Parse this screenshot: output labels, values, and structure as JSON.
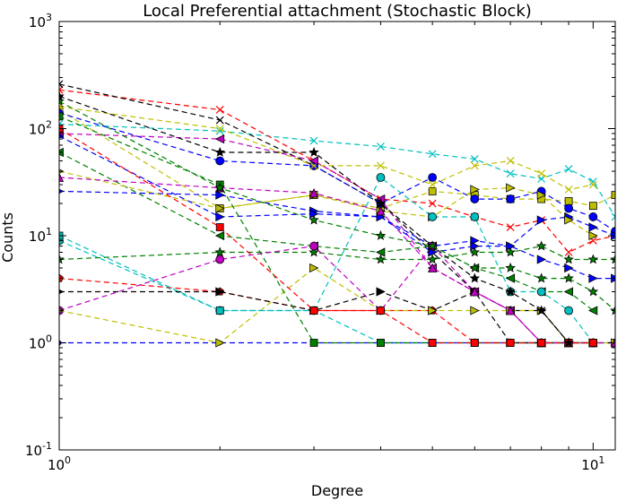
{
  "chart_data": {
    "type": "line",
    "title": "Local Preferential attachment (Stochastic Block)",
    "xlabel": "Degree",
    "ylabel": "Counts",
    "x_scale": "log",
    "y_scale": "log",
    "xlim": [
      1,
      11
    ],
    "ylim": [
      0.1,
      1000
    ],
    "x_ticks": [
      {
        "value": 1,
        "base": "10",
        "exp": "0"
      },
      {
        "value": 10,
        "base": "10",
        "exp": "1"
      }
    ],
    "y_ticks": [
      {
        "value": 0.1,
        "base": "10",
        "exp": "-1"
      },
      {
        "value": 1,
        "base": "10",
        "exp": "0"
      },
      {
        "value": 10,
        "base": "10",
        "exp": "1"
      },
      {
        "value": 100,
        "base": "10",
        "exp": "2"
      },
      {
        "value": 1000,
        "base": "10",
        "exp": "3"
      }
    ],
    "grid": false,
    "legend": "none",
    "series": [
      {
        "color": "#0000ff",
        "marker": "o",
        "x": [
          1,
          2,
          3,
          4,
          5,
          6,
          7,
          8,
          9,
          10
        ],
        "y": [
          1,
          1,
          1,
          1,
          1,
          1,
          1,
          1,
          1,
          1
        ]
      },
      {
        "color": "#bfbf00",
        "marker": "square",
        "x": [
          1,
          2,
          3,
          4,
          5,
          6,
          7,
          8,
          9,
          10,
          11
        ],
        "y": [
          150,
          18,
          24,
          18,
          26,
          24,
          22,
          22,
          21,
          19,
          24
        ]
      },
      {
        "color": "#00bfbf",
        "marker": "x",
        "x": [
          1,
          2,
          3,
          4,
          5,
          6,
          7,
          8,
          9,
          10,
          11
        ],
        "y": [
          110,
          95,
          77,
          68,
          58,
          52,
          38,
          34,
          42,
          32,
          15
        ]
      },
      {
        "color": "#ff0000",
        "marker": "x",
        "x": [
          1,
          2,
          3,
          4,
          5,
          6,
          7,
          8,
          9,
          10,
          11
        ],
        "y": [
          230,
          150,
          50,
          22,
          20,
          15,
          12,
          14,
          7,
          9,
          10
        ]
      },
      {
        "color": "#000000",
        "marker": "x",
        "x": [
          1,
          2,
          3,
          4,
          5,
          6,
          7,
          8,
          9,
          10,
          11
        ],
        "y": [
          260,
          120,
          45,
          20,
          7,
          3,
          2,
          2,
          1,
          1,
          1
        ]
      },
      {
        "color": "#0000ff",
        "marker": "circle",
        "x": [
          1,
          2,
          3,
          4,
          5,
          6,
          7,
          8,
          9,
          10,
          11
        ],
        "y": [
          140,
          50,
          45,
          20,
          35,
          22,
          22,
          26,
          18,
          15,
          11
        ]
      },
      {
        "color": "#bfbf00",
        "marker": "x",
        "x": [
          1,
          2,
          3,
          4,
          5,
          6,
          7,
          8,
          9,
          10
        ],
        "y": [
          160,
          100,
          45,
          45,
          30,
          45,
          50,
          38,
          27,
          30
        ]
      },
      {
        "color": "#bf00bf",
        "marker": "triangle-left",
        "x": [
          1,
          2,
          3,
          4,
          5,
          6,
          7,
          8
        ],
        "y": [
          90,
          80,
          50,
          22,
          5,
          3,
          2,
          1
        ]
      },
      {
        "color": "#008000",
        "marker": "triangle-left",
        "x": [
          1,
          2,
          3,
          4,
          5,
          6,
          7,
          8,
          9,
          10
        ],
        "y": [
          60,
          10,
          8,
          7,
          8,
          5,
          4,
          3,
          3,
          2
        ]
      },
      {
        "color": "#0000ff",
        "marker": "triangle-right",
        "x": [
          1,
          2,
          3,
          4,
          5,
          6,
          7,
          8,
          9,
          10,
          11
        ],
        "y": [
          26,
          24,
          17,
          15,
          8,
          9,
          8,
          14,
          15,
          12,
          10
        ]
      },
      {
        "color": "#bfbf00",
        "marker": "triangle-right",
        "x": [
          1,
          2,
          3,
          4,
          5,
          6,
          7,
          8,
          9,
          10
        ],
        "y": [
          40,
          18,
          24,
          17,
          15,
          27,
          28,
          24,
          14,
          10
        ]
      },
      {
        "color": "#00bfbf",
        "marker": "circle",
        "x": [
          1,
          2,
          3,
          4,
          5,
          6,
          7,
          8,
          9,
          10,
          11
        ],
        "y": [
          9,
          2,
          2,
          35,
          15,
          15,
          3,
          3,
          2,
          1,
          1
        ]
      },
      {
        "color": "#ff0000",
        "marker": "pentagon",
        "x": [
          1,
          2,
          3,
          4,
          5,
          6,
          7,
          8
        ],
        "y": [
          4,
          3,
          2,
          2,
          2,
          1,
          1,
          1
        ]
      },
      {
        "color": "#008000",
        "marker": "star",
        "x": [
          1,
          2,
          3,
          4,
          5,
          6,
          7,
          8,
          9,
          10,
          11
        ],
        "y": [
          6,
          7,
          7,
          6,
          6,
          7,
          7,
          8,
          6,
          6,
          6
        ]
      },
      {
        "color": "#bf00bf",
        "marker": "circle",
        "x": [
          1,
          2,
          3,
          4,
          5,
          6,
          7,
          8,
          9,
          10
        ],
        "y": [
          2,
          6,
          8,
          2,
          8,
          3,
          2,
          1,
          1,
          1
        ]
      },
      {
        "color": "#000000",
        "marker": "triangle-right",
        "x": [
          1,
          2,
          3,
          4,
          5,
          6,
          7,
          8,
          9,
          10
        ],
        "y": [
          3,
          3,
          2,
          3,
          2,
          3,
          1,
          1,
          1,
          1
        ]
      },
      {
        "color": "#bfbf00",
        "marker": "triangle-right",
        "x": [
          1,
          2,
          3,
          4,
          5,
          6,
          7,
          8,
          9,
          10,
          11
        ],
        "y": [
          2,
          1,
          5,
          2,
          2,
          2,
          2,
          2,
          1,
          1,
          1
        ]
      },
      {
        "color": "#00bfbf",
        "marker": "square",
        "x": [
          1,
          2,
          3,
          4,
          5,
          6,
          7,
          8,
          9,
          10
        ],
        "y": [
          10,
          2,
          2,
          1,
          1,
          1,
          1,
          1,
          1,
          1
        ]
      },
      {
        "color": "#0000ff",
        "marker": "triangle-right",
        "x": [
          1,
          2,
          3,
          4,
          5,
          6,
          7,
          8,
          9,
          10,
          11
        ],
        "y": [
          85,
          15,
          16,
          15,
          7,
          8,
          8,
          6,
          5,
          4,
          4
        ]
      },
      {
        "color": "#008000",
        "marker": "square",
        "x": [
          1,
          2,
          3,
          4,
          5,
          6,
          7,
          8,
          9,
          10
        ],
        "y": [
          130,
          30,
          1,
          1,
          1,
          1,
          1,
          1,
          1,
          1
        ]
      },
      {
        "color": "#bf00bf",
        "marker": "triangle-up",
        "x": [
          1,
          2,
          3,
          4,
          5,
          6,
          7,
          8,
          9,
          10,
          11
        ],
        "y": [
          35,
          28,
          25,
          17,
          5,
          3,
          2,
          1,
          1,
          1,
          1
        ]
      },
      {
        "color": "#ff0000",
        "marker": "square",
        "x": [
          1,
          2,
          3,
          4,
          5,
          6,
          7,
          8,
          9,
          10
        ],
        "y": [
          100,
          12,
          2,
          2,
          1,
          1,
          1,
          1,
          1,
          1
        ]
      },
      {
        "color": "#000000",
        "marker": "star",
        "x": [
          1,
          2,
          3,
          4,
          5,
          6,
          7,
          8,
          9
        ],
        "y": [
          200,
          60,
          60,
          20,
          8,
          4,
          3,
          2,
          1
        ]
      },
      {
        "color": "#008000",
        "marker": "star",
        "x": [
          1,
          2,
          3,
          4,
          5,
          6,
          7,
          8,
          9,
          10,
          11
        ],
        "y": [
          180,
          28,
          14,
          10,
          8,
          5,
          5,
          4,
          4,
          3,
          2
        ]
      }
    ]
  }
}
